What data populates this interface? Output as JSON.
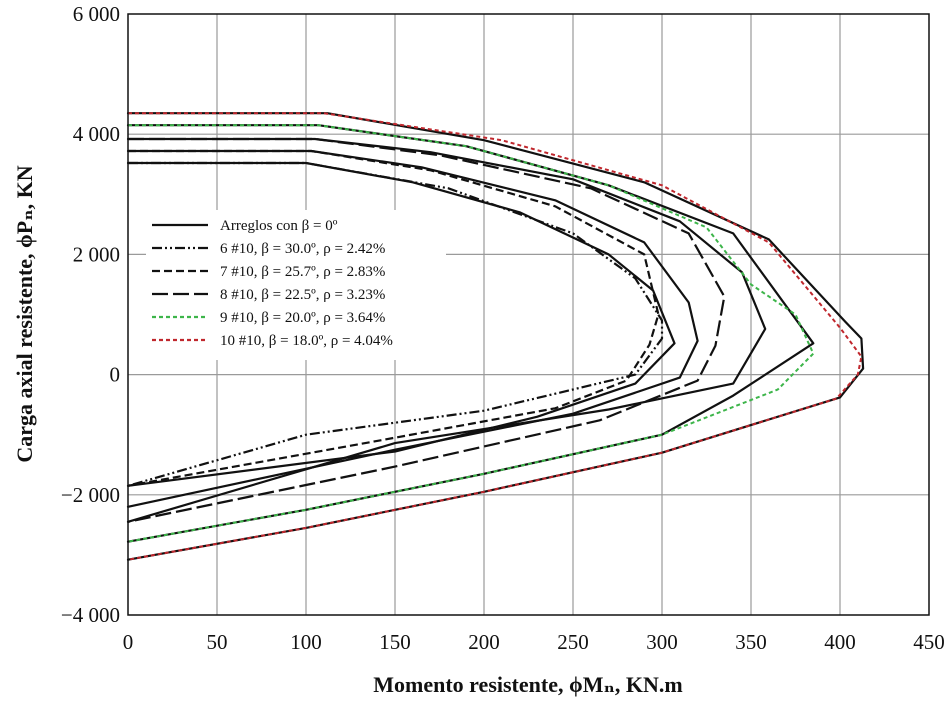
{
  "chart_data": {
    "type": "line",
    "xlabel": "Momento resistente, ϕMₙ, KN.m",
    "ylabel": "Carga axial resistente, ϕPₙ, KN",
    "xlim": [
      0,
      450
    ],
    "ylim": [
      -4000,
      6000
    ],
    "xticks": [
      0,
      50,
      100,
      150,
      200,
      250,
      300,
      350,
      400,
      450
    ],
    "xtick_labels": [
      "0",
      "50",
      "100",
      "150",
      "200",
      "250",
      "300",
      "350",
      "400",
      "450"
    ],
    "yticks": [
      -4000,
      -2000,
      0,
      2000,
      4000,
      6000
    ],
    "ytick_labels": [
      "−4 000",
      "−2 000",
      "0",
      "2 000",
      "4 000",
      "6 000"
    ],
    "grid": true,
    "legend_position": "center-left",
    "series": [
      {
        "name": "Arreglos con β = 0º",
        "color": "#111111",
        "dash": "solid",
        "curves": [
          [
            [
              0,
              3520
            ],
            [
              100,
              3520
            ],
            [
              160,
              3200
            ],
            [
              220,
              2700
            ],
            [
              270,
              2000
            ],
            [
              295,
              1400
            ],
            [
              307,
              520
            ],
            [
              285,
              -150
            ],
            [
              230,
              -700
            ],
            [
              150,
              -1280
            ],
            [
              0,
              -1850
            ]
          ],
          [
            [
              0,
              3720
            ],
            [
              103,
              3720
            ],
            [
              165,
              3450
            ],
            [
              240,
              2900
            ],
            [
              290,
              2200
            ],
            [
              315,
              1200
            ],
            [
              320,
              560
            ],
            [
              310,
              -50
            ],
            [
              250,
              -650
            ],
            [
              150,
              -1250
            ],
            [
              0,
              -2200
            ]
          ],
          [
            [
              0,
              3920
            ],
            [
              105,
              3920
            ],
            [
              170,
              3700
            ],
            [
              250,
              3250
            ],
            [
              310,
              2550
            ],
            [
              345,
              1700
            ],
            [
              358,
              760
            ],
            [
              340,
              -150
            ],
            [
              270,
              -580
            ],
            [
              150,
              -1140
            ],
            [
              0,
              -2450
            ]
          ],
          [
            [
              0,
              4150
            ],
            [
              107,
              4150
            ],
            [
              190,
              3800
            ],
            [
              270,
              3150
            ],
            [
              340,
              2350
            ],
            [
              385,
              520
            ],
            [
              340,
              -350
            ],
            [
              300,
              -1000
            ],
            [
              200,
              -1650
            ],
            [
              100,
              -2250
            ],
            [
              0,
              -2780
            ]
          ],
          [
            [
              0,
              4350
            ],
            [
              112,
              4350
            ],
            [
              200,
              3900
            ],
            [
              290,
              3200
            ],
            [
              360,
              2250
            ],
            [
              403,
              880
            ],
            [
              412,
              600
            ],
            [
              413,
              100
            ],
            [
              400,
              -380
            ],
            [
              300,
              -1300
            ],
            [
              200,
              -1950
            ],
            [
              100,
              -2550
            ],
            [
              0,
              -3080
            ]
          ]
        ]
      },
      {
        "name": "6 #10, β = 30.0º, ρ = 2.42%",
        "color": "#111111",
        "dash": "dashdotdot",
        "curves": [
          [
            [
              0,
              3520
            ],
            [
              100,
              3520
            ],
            [
              180,
              3100
            ],
            [
              250,
              2350
            ],
            [
              285,
              1600
            ],
            [
              300,
              900
            ],
            [
              300,
              600
            ],
            [
              285,
              0
            ],
            [
              200,
              -600
            ],
            [
              100,
              -1000
            ],
            [
              0,
              -1850
            ]
          ]
        ]
      },
      {
        "name": "7 #10, β = 25.7º, ρ = 2.83%",
        "color": "#111111",
        "dash": "dashed",
        "curves": [
          [
            [
              0,
              3720
            ],
            [
              103,
              3720
            ],
            [
              170,
              3400
            ],
            [
              240,
              2800
            ],
            [
              290,
              2000
            ],
            [
              298,
              1000
            ],
            [
              293,
              500
            ],
            [
              280,
              -100
            ],
            [
              240,
              -560
            ],
            [
              150,
              -1050
            ],
            [
              0,
              -1850
            ]
          ]
        ]
      },
      {
        "name": "8 #10, β = 22.5º, ρ = 3.23%",
        "color": "#111111",
        "dash": "longdash",
        "curves": [
          [
            [
              0,
              3920
            ],
            [
              105,
              3920
            ],
            [
              175,
              3650
            ],
            [
              260,
              3100
            ],
            [
              315,
              2350
            ],
            [
              335,
              1300
            ],
            [
              330,
              480
            ],
            [
              320,
              -100
            ],
            [
              265,
              -760
            ],
            [
              150,
              -1530
            ],
            [
              0,
              -2450
            ]
          ]
        ]
      },
      {
        "name": "9 #10, β = 20.0º, ρ = 3.64%",
        "color": "#3db54a",
        "dash": "dotted",
        "curves": [
          [
            [
              0,
              4150
            ],
            [
              107,
              4150
            ],
            [
              190,
              3800
            ],
            [
              270,
              3150
            ],
            [
              325,
              2450
            ],
            [
              350,
              1500
            ],
            [
              375,
              1000
            ],
            [
              385,
              350
            ],
            [
              365,
              -250
            ],
            [
              300,
              -1000
            ],
            [
              200,
              -1650
            ],
            [
              100,
              -2250
            ],
            [
              0,
              -2780
            ]
          ]
        ]
      },
      {
        "name": "10 #10, β = 18.0º, ρ = 4.04%",
        "color": "#c0272d",
        "dash": "dotted",
        "curves": [
          [
            [
              0,
              4350
            ],
            [
              110,
              4350
            ],
            [
              210,
              3900
            ],
            [
              300,
              3150
            ],
            [
              360,
              2200
            ],
            [
              400,
              780
            ],
            [
              412,
              300
            ],
            [
              410,
              0
            ],
            [
              398,
              -400
            ],
            [
              300,
              -1300
            ],
            [
              200,
              -1950
            ],
            [
              100,
              -2550
            ],
            [
              0,
              -3080
            ]
          ]
        ]
      }
    ]
  }
}
